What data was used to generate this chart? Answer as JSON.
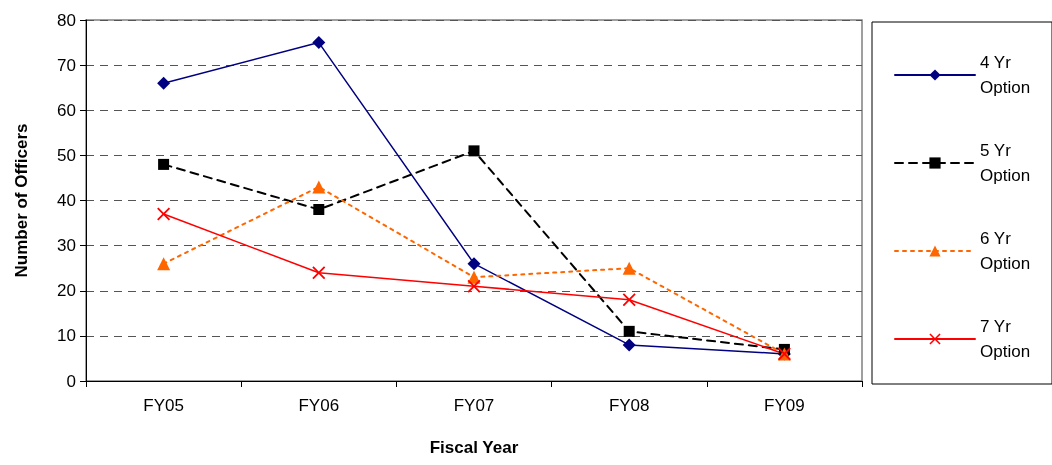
{
  "chart_data": {
    "type": "line",
    "xlabel": "Fiscal Year",
    "ylabel": "Number of Officers",
    "categories": [
      "FY05",
      "FY06",
      "FY07",
      "FY08",
      "FY09"
    ],
    "ylim": [
      0,
      80
    ],
    "yticks": [
      0,
      10,
      20,
      30,
      40,
      50,
      60,
      70,
      80
    ],
    "grid": "y",
    "legend": "right",
    "series": [
      {
        "name": "4 Yr Option",
        "color": "#000080",
        "values": [
          66,
          75,
          26,
          8,
          6
        ],
        "marker": "diamond",
        "line_style": "solid"
      },
      {
        "name": "5 Yr Option",
        "color": "#000000",
        "values": [
          48,
          38,
          51,
          11,
          7
        ],
        "marker": "square",
        "line_style": "dashed"
      },
      {
        "name": "6 Yr Option",
        "color": "#ff6600",
        "values": [
          26,
          43,
          23,
          25,
          6
        ],
        "marker": "triangle",
        "line_style": "dotted"
      },
      {
        "name": "7 Yr Option",
        "color": "#ff0000",
        "values": [
          37,
          24,
          21,
          18,
          6
        ],
        "marker": "cross",
        "line_style": "solid"
      }
    ]
  }
}
